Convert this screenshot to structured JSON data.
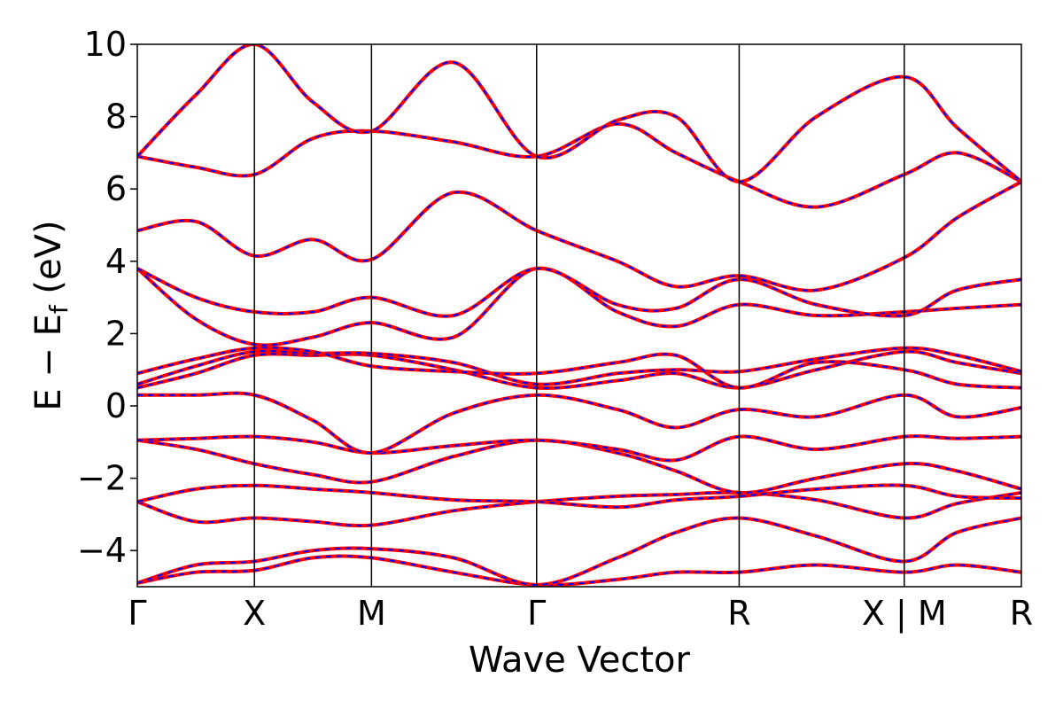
{
  "chart_data": {
    "type": "line",
    "xlabel": "Wave Vector",
    "ylabel_main": "E − E",
    "ylabel_sub": "f",
    "ylabel_unit": " (eV)",
    "ylim": [
      -5,
      10
    ],
    "yticks": [
      {
        "value": 10,
        "label": "10"
      },
      {
        "value": 8,
        "label": "8"
      },
      {
        "value": 6,
        "label": "6"
      },
      {
        "value": 4,
        "label": "4"
      },
      {
        "value": 2,
        "label": "2"
      },
      {
        "value": 0,
        "label": "0"
      },
      {
        "value": -2,
        "label": "−2"
      },
      {
        "value": -4,
        "label": "−4"
      }
    ],
    "xlim": [
      0,
      7.55
    ],
    "kpath": [
      {
        "position": 0.0,
        "label": "Γ"
      },
      {
        "position": 1.0,
        "label": "X"
      },
      {
        "position": 2.0,
        "label": "M"
      },
      {
        "position": 3.41,
        "label": "Γ"
      },
      {
        "position": 5.14,
        "label": "R"
      },
      {
        "position": 6.55,
        "label": "X | M"
      },
      {
        "position": 7.55,
        "label": "R"
      }
    ],
    "series_styles": [
      {
        "color": "#ff0000",
        "style": "solid"
      },
      {
        "color": "#0000ff",
        "style": "dashed"
      }
    ],
    "bands": [
      {
        "x": [
          0,
          0.5,
          1.0,
          1.5,
          2.0,
          2.7,
          3.41,
          4.1,
          4.6,
          5.14,
          5.8,
          6.55,
          7.0,
          7.55
        ],
        "y": [
          -4.9,
          -4.6,
          -4.55,
          -4.2,
          -4.2,
          -4.6,
          -4.95,
          -4.8,
          -4.6,
          -4.6,
          -4.4,
          -4.6,
          -4.4,
          -4.6
        ]
      },
      {
        "x": [
          0,
          0.5,
          1.0,
          1.5,
          2.0,
          2.7,
          3.41,
          4.1,
          4.6,
          5.14,
          5.8,
          6.55,
          7.0,
          7.55
        ],
        "y": [
          -4.9,
          -4.4,
          -4.3,
          -4.0,
          -3.95,
          -4.2,
          -4.95,
          -4.2,
          -3.5,
          -3.1,
          -3.6,
          -4.3,
          -3.5,
          -3.1
        ]
      },
      {
        "x": [
          0,
          0.5,
          1.0,
          1.5,
          2.0,
          2.7,
          3.41,
          4.1,
          4.6,
          5.14,
          5.8,
          6.55,
          7.0,
          7.55
        ],
        "y": [
          -2.65,
          -3.2,
          -3.1,
          -3.2,
          -3.3,
          -2.9,
          -2.65,
          -2.5,
          -2.45,
          -2.4,
          -2.6,
          -3.1,
          -2.7,
          -2.4
        ]
      },
      {
        "x": [
          0,
          0.5,
          1.0,
          1.5,
          2.0,
          2.7,
          3.41,
          4.1,
          4.6,
          5.14,
          5.8,
          6.55,
          7.0,
          7.55
        ],
        "y": [
          -2.65,
          -2.3,
          -2.2,
          -2.3,
          -2.4,
          -2.6,
          -2.65,
          -2.8,
          -2.6,
          -2.5,
          -2.3,
          -2.2,
          -2.5,
          -2.55
        ]
      },
      {
        "x": [
          0,
          0.5,
          1.0,
          1.5,
          2.0,
          2.7,
          3.41,
          4.1,
          4.6,
          5.14,
          5.8,
          6.55,
          7.0,
          7.55
        ],
        "y": [
          -0.95,
          -1.2,
          -1.6,
          -1.9,
          -2.1,
          -1.4,
          -0.95,
          -1.3,
          -1.8,
          -2.4,
          -2.0,
          -1.6,
          -1.8,
          -2.3
        ]
      },
      {
        "x": [
          0,
          0.5,
          1.0,
          1.5,
          2.0,
          2.7,
          3.41,
          4.1,
          4.6,
          5.14,
          5.8,
          6.55,
          7.0,
          7.55
        ],
        "y": [
          -0.95,
          -0.9,
          -0.85,
          -1.0,
          -1.3,
          -1.1,
          -0.95,
          -1.2,
          -1.5,
          -0.85,
          -1.2,
          -0.85,
          -0.9,
          -0.85
        ]
      },
      {
        "x": [
          0,
          0.5,
          1.0,
          1.5,
          2.0,
          2.7,
          3.41,
          4.1,
          4.6,
          5.14,
          5.8,
          6.55,
          7.0,
          7.55
        ],
        "y": [
          0.3,
          0.3,
          0.3,
          -0.4,
          -1.3,
          -0.2,
          0.3,
          -0.1,
          -0.6,
          -0.1,
          -0.3,
          0.3,
          -0.3,
          -0.05
        ]
      },
      {
        "x": [
          0,
          0.5,
          1.0,
          1.5,
          2.0,
          2.7,
          3.41,
          4.1,
          4.6,
          5.14,
          5.8,
          6.55,
          7.0,
          7.55
        ],
        "y": [
          0.5,
          0.9,
          1.4,
          1.4,
          1.4,
          1.0,
          0.5,
          0.7,
          0.9,
          0.5,
          1.0,
          1.5,
          1.2,
          0.9
        ]
      },
      {
        "x": [
          0,
          0.5,
          1.0,
          1.5,
          2.0,
          2.7,
          3.41,
          4.1,
          4.6,
          5.14,
          5.8,
          6.55,
          7.0,
          7.55
        ],
        "y": [
          0.6,
          1.1,
          1.5,
          1.45,
          1.45,
          1.2,
          0.6,
          0.9,
          1.0,
          0.95,
          1.3,
          1.6,
          1.4,
          0.95
        ]
      },
      {
        "x": [
          0,
          0.5,
          1.0,
          1.5,
          2.0,
          2.7,
          3.41,
          4.1,
          4.6,
          5.14,
          5.8,
          6.55,
          7.0,
          7.55
        ],
        "y": [
          0.9,
          1.3,
          1.6,
          1.5,
          1.1,
          0.95,
          0.9,
          1.2,
          1.4,
          0.5,
          1.2,
          1.0,
          0.6,
          0.5
        ]
      },
      {
        "x": [
          0,
          0.5,
          1.0,
          1.5,
          2.0,
          2.7,
          3.41,
          4.1,
          4.6,
          5.14,
          5.8,
          6.55,
          7.0,
          7.55
        ],
        "y": [
          3.8,
          2.4,
          1.7,
          1.9,
          2.3,
          1.9,
          3.8,
          2.6,
          2.2,
          2.8,
          2.5,
          2.6,
          2.7,
          2.8
        ]
      },
      {
        "x": [
          0,
          0.5,
          1.0,
          1.5,
          2.0,
          2.7,
          3.41,
          4.1,
          4.6,
          5.14,
          5.8,
          6.55,
          7.0,
          7.55
        ],
        "y": [
          3.8,
          3.0,
          2.6,
          2.6,
          3.0,
          2.5,
          3.8,
          2.8,
          2.7,
          3.5,
          2.8,
          2.5,
          3.2,
          3.5
        ]
      },
      {
        "x": [
          0,
          0.5,
          1.0,
          1.5,
          2.0,
          2.7,
          3.41,
          4.1,
          4.6,
          5.14,
          5.8,
          6.55,
          7.0,
          7.55
        ],
        "y": [
          4.85,
          5.1,
          4.15,
          4.6,
          4.05,
          5.9,
          4.85,
          4.0,
          3.3,
          3.6,
          3.2,
          4.1,
          5.2,
          6.2
        ]
      },
      {
        "x": [
          0,
          0.5,
          1.0,
          1.5,
          2.0,
          2.7,
          3.41,
          4.1,
          4.6,
          5.14,
          5.8,
          6.55,
          7.0,
          7.55
        ],
        "y": [
          6.9,
          6.6,
          6.4,
          7.4,
          7.6,
          7.3,
          6.9,
          7.8,
          7.0,
          6.2,
          5.5,
          6.4,
          7.0,
          6.2
        ]
      },
      {
        "x": [
          0,
          0.5,
          1.0,
          1.5,
          2.0,
          2.7,
          3.41,
          4.1,
          4.6,
          5.14,
          5.8,
          6.55,
          7.0,
          7.55
        ],
        "y": [
          6.9,
          8.6,
          10.0,
          8.4,
          7.6,
          9.5,
          6.9,
          7.9,
          8.0,
          6.2,
          8.0,
          9.1,
          7.7,
          6.2
        ]
      }
    ]
  }
}
